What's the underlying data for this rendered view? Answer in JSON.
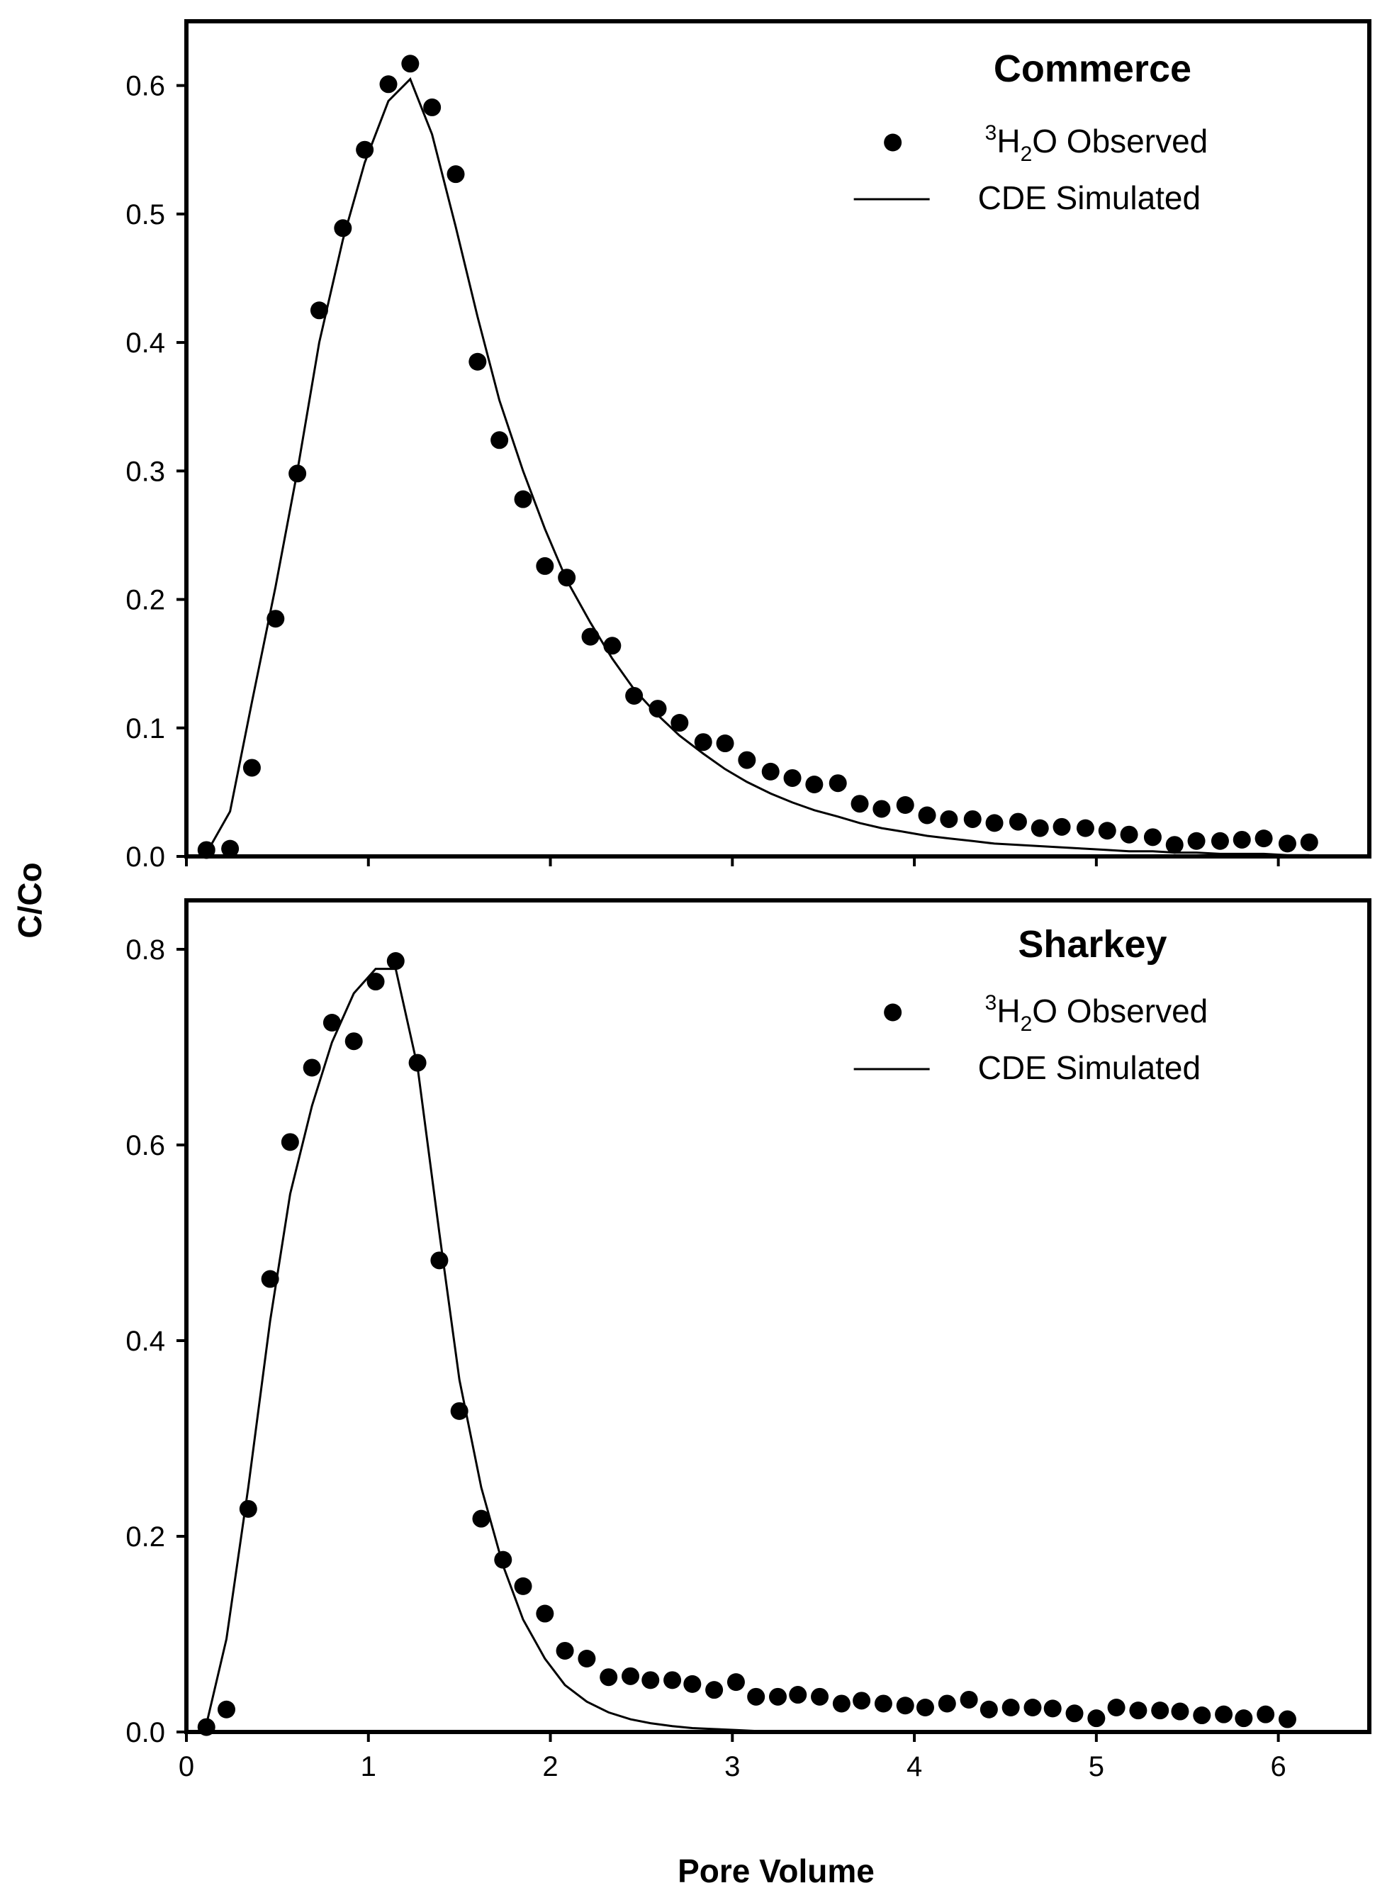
{
  "figure": {
    "ylabel": "C/Co",
    "xlabel": "Pore Volume"
  },
  "chart_data": [
    {
      "type": "scatter",
      "title": "Commerce",
      "xlabel": "Pore Volume",
      "ylabel": "C/Co",
      "xlim": [
        0,
        6.5
      ],
      "ylim": [
        0,
        0.65
      ],
      "xticks": [
        0,
        1,
        2,
        3,
        4,
        5,
        6
      ],
      "yticks": [
        0.0,
        0.1,
        0.2,
        0.3,
        0.4,
        0.5,
        0.6
      ],
      "ytick_labels": [
        "0.0",
        "0.1",
        "0.2",
        "0.3",
        "0.4",
        "0.5",
        "0.6"
      ],
      "legend": {
        "observed": {
          "sup": "3",
          "h": "H",
          "sub": "2",
          "rest": "O Observed"
        },
        "simulated": "CDE Simulated",
        "position": "top-right"
      },
      "series": [
        {
          "name": "3H2O Observed",
          "kind": "points",
          "x": [
            0.11,
            0.24,
            0.36,
            0.49,
            0.61,
            0.73,
            0.86,
            0.98,
            1.11,
            1.23,
            1.35,
            1.48,
            1.6,
            1.72,
            1.85,
            1.97,
            2.09,
            2.22,
            2.34,
            2.46,
            2.59,
            2.71,
            2.84,
            2.96,
            3.08,
            3.21,
            3.33,
            3.45,
            3.58,
            3.7,
            3.82,
            3.95,
            4.07,
            4.19,
            4.32,
            4.44,
            4.57,
            4.69,
            4.81,
            4.94,
            5.06,
            5.18,
            5.31,
            5.43,
            5.55,
            5.68,
            5.8,
            5.92,
            6.05,
            6.17
          ],
          "y": [
            0.005,
            0.006,
            0.069,
            0.185,
            0.298,
            0.425,
            0.489,
            0.55,
            0.601,
            0.617,
            0.583,
            0.531,
            0.385,
            0.324,
            0.278,
            0.226,
            0.217,
            0.171,
            0.164,
            0.125,
            0.115,
            0.104,
            0.089,
            0.088,
            0.075,
            0.066,
            0.061,
            0.056,
            0.057,
            0.041,
            0.037,
            0.04,
            0.032,
            0.029,
            0.029,
            0.026,
            0.027,
            0.022,
            0.023,
            0.022,
            0.02,
            0.017,
            0.015,
            0.009,
            0.012,
            0.012,
            0.013,
            0.014,
            0.01,
            0.011
          ]
        },
        {
          "name": "CDE Simulated",
          "kind": "line",
          "x": [
            0.1,
            0.24,
            0.36,
            0.49,
            0.61,
            0.73,
            0.86,
            0.98,
            1.11,
            1.23,
            1.35,
            1.48,
            1.6,
            1.72,
            1.85,
            1.97,
            2.09,
            2.22,
            2.34,
            2.46,
            2.59,
            2.71,
            2.84,
            2.96,
            3.08,
            3.21,
            3.33,
            3.45,
            3.58,
            3.7,
            3.82,
            3.95,
            4.07,
            4.19,
            4.32,
            4.44,
            4.57,
            4.69,
            4.81,
            4.94,
            5.06,
            5.18,
            5.31,
            5.43,
            5.55,
            5.68,
            5.8,
            5.92,
            6.05,
            6.17
          ],
          "y": [
            0.0,
            0.035,
            0.12,
            0.21,
            0.3,
            0.4,
            0.48,
            0.54,
            0.588,
            0.605,
            0.562,
            0.49,
            0.42,
            0.355,
            0.3,
            0.255,
            0.215,
            0.182,
            0.154,
            0.13,
            0.11,
            0.094,
            0.08,
            0.068,
            0.058,
            0.049,
            0.042,
            0.036,
            0.031,
            0.026,
            0.022,
            0.019,
            0.016,
            0.014,
            0.012,
            0.01,
            0.009,
            0.008,
            0.007,
            0.006,
            0.005,
            0.004,
            0.004,
            0.003,
            0.003,
            0.002,
            0.002,
            0.002,
            0.001,
            0.001
          ]
        }
      ]
    },
    {
      "type": "scatter",
      "title": "Sharkey",
      "xlabel": "Pore Volume",
      "ylabel": "C/Co",
      "xlim": [
        0,
        6.5
      ],
      "ylim": [
        0,
        0.85
      ],
      "xticks": [
        0,
        1,
        2,
        3,
        4,
        5,
        6
      ],
      "xtick_labels": [
        "0",
        "1",
        "2",
        "3",
        "4",
        "5",
        "6"
      ],
      "yticks": [
        0.0,
        0.2,
        0.4,
        0.6,
        0.8
      ],
      "ytick_labels": [
        "0.0",
        "0.2",
        "0.4",
        "0.6",
        "0.8"
      ],
      "legend": {
        "observed": {
          "sup": "3",
          "h": "H",
          "sub": "2",
          "rest": "O Observed"
        },
        "simulated": "CDE Simulated",
        "position": "top-right"
      },
      "series": [
        {
          "name": "3H2O Observed",
          "kind": "points",
          "x": [
            0.11,
            0.22,
            0.34,
            0.46,
            0.57,
            0.69,
            0.8,
            0.92,
            1.04,
            1.15,
            1.27,
            1.39,
            1.5,
            1.62,
            1.74,
            1.85,
            1.97,
            2.08,
            2.2,
            2.32,
            2.44,
            2.55,
            2.67,
            2.78,
            2.9,
            3.02,
            3.13,
            3.25,
            3.36,
            3.48,
            3.6,
            3.71,
            3.83,
            3.95,
            4.06,
            4.18,
            4.3,
            4.41,
            4.53,
            4.65,
            4.76,
            4.88,
            5.0,
            5.11,
            5.23,
            5.35,
            5.46,
            5.58,
            5.7,
            5.81,
            5.93,
            6.05
          ],
          "y": [
            0.005,
            0.023,
            0.228,
            0.463,
            0.603,
            0.679,
            0.725,
            0.706,
            0.767,
            0.788,
            0.684,
            0.482,
            0.328,
            0.218,
            0.176,
            0.149,
            0.121,
            0.083,
            0.075,
            0.056,
            0.057,
            0.053,
            0.053,
            0.049,
            0.043,
            0.051,
            0.036,
            0.036,
            0.038,
            0.036,
            0.029,
            0.032,
            0.029,
            0.027,
            0.025,
            0.029,
            0.033,
            0.023,
            0.025,
            0.025,
            0.024,
            0.019,
            0.014,
            0.025,
            0.022,
            0.022,
            0.021,
            0.017,
            0.018,
            0.014,
            0.018,
            0.013
          ]
        },
        {
          "name": "CDE Simulated",
          "kind": "line",
          "x": [
            0.1,
            0.22,
            0.34,
            0.46,
            0.57,
            0.69,
            0.8,
            0.92,
            1.04,
            1.15,
            1.27,
            1.39,
            1.5,
            1.62,
            1.74,
            1.85,
            1.97,
            2.08,
            2.2,
            2.32,
            2.44,
            2.55,
            2.67,
            2.78,
            2.9,
            3.02,
            3.13,
            3.25,
            3.36,
            3.48,
            3.6,
            3.71,
            3.83,
            3.95,
            4.06,
            4.18,
            4.3,
            4.41,
            4.53,
            4.65,
            4.76,
            4.88,
            5.0,
            5.11,
            5.23,
            5.35,
            5.46,
            5.58,
            5.7,
            5.81,
            5.93,
            6.05
          ],
          "y": [
            0.0,
            0.095,
            0.25,
            0.42,
            0.55,
            0.64,
            0.705,
            0.755,
            0.78,
            0.78,
            0.68,
            0.51,
            0.36,
            0.25,
            0.17,
            0.115,
            0.075,
            0.048,
            0.031,
            0.02,
            0.013,
            0.009,
            0.006,
            0.004,
            0.003,
            0.002,
            0.001,
            0.001,
            0.001,
            0.0,
            0.0,
            0.0,
            0.0,
            0.0,
            0.0,
            0.0,
            0.0,
            0.0,
            0.0,
            0.0,
            0.0,
            0.0,
            0.0,
            0.0,
            0.0,
            0.0,
            0.0,
            0.0,
            0.0,
            0.0,
            0.0,
            0.0
          ]
        }
      ]
    }
  ]
}
